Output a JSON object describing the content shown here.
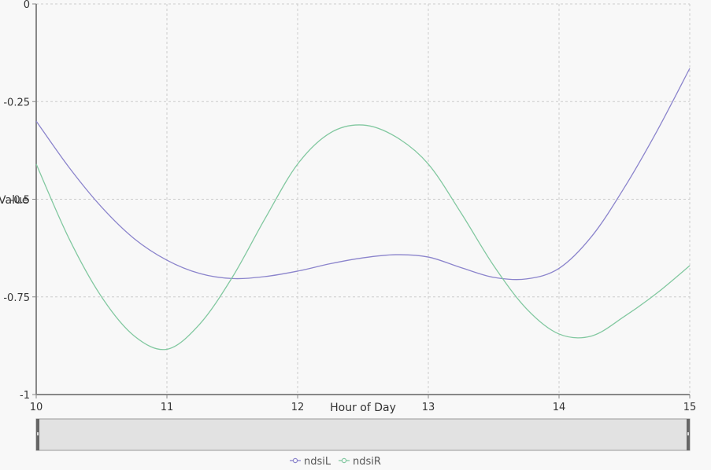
{
  "chart_data": {
    "type": "line",
    "xlabel": "Hour of Day",
    "ylabel": "Value",
    "xlim": [
      10,
      15
    ],
    "ylim": [
      -1,
      0
    ],
    "x_ticks": [
      "10",
      "11",
      "12",
      "13",
      "14",
      "15"
    ],
    "y_ticks": [
      "0",
      "-0.25",
      "-0.5",
      "-0.75",
      "-1"
    ],
    "grid": true,
    "legend_position": "bottom-center",
    "series": [
      {
        "name": "ndsiL",
        "color": "#8b84cc",
        "x": [
          10,
          10.25,
          10.5,
          10.75,
          11,
          11.25,
          11.5,
          11.75,
          12,
          12.25,
          12.5,
          12.75,
          13,
          13.25,
          13.5,
          13.75,
          14,
          14.25,
          14.5,
          14.75,
          15
        ],
        "y": [
          -0.3,
          -0.418,
          -0.52,
          -0.601,
          -0.656,
          -0.69,
          -0.703,
          -0.698,
          -0.684,
          -0.665,
          -0.65,
          -0.642,
          -0.648,
          -0.675,
          -0.7,
          -0.704,
          -0.677,
          -0.595,
          -0.47,
          -0.325,
          -0.165
        ]
      },
      {
        "name": "ndsiR",
        "color": "#82c8a0",
        "x": [
          10,
          10.25,
          10.5,
          10.75,
          11,
          11.25,
          11.5,
          11.75,
          12,
          12.25,
          12.5,
          12.75,
          13,
          13.25,
          13.5,
          13.75,
          14,
          14.25,
          14.5,
          14.75,
          15
        ],
        "y": [
          -0.41,
          -0.6,
          -0.75,
          -0.85,
          -0.884,
          -0.82,
          -0.7,
          -0.55,
          -0.41,
          -0.33,
          -0.31,
          -0.34,
          -0.41,
          -0.535,
          -0.67,
          -0.78,
          -0.845,
          -0.85,
          -0.8,
          -0.74,
          -0.67
        ]
      }
    ]
  }
}
